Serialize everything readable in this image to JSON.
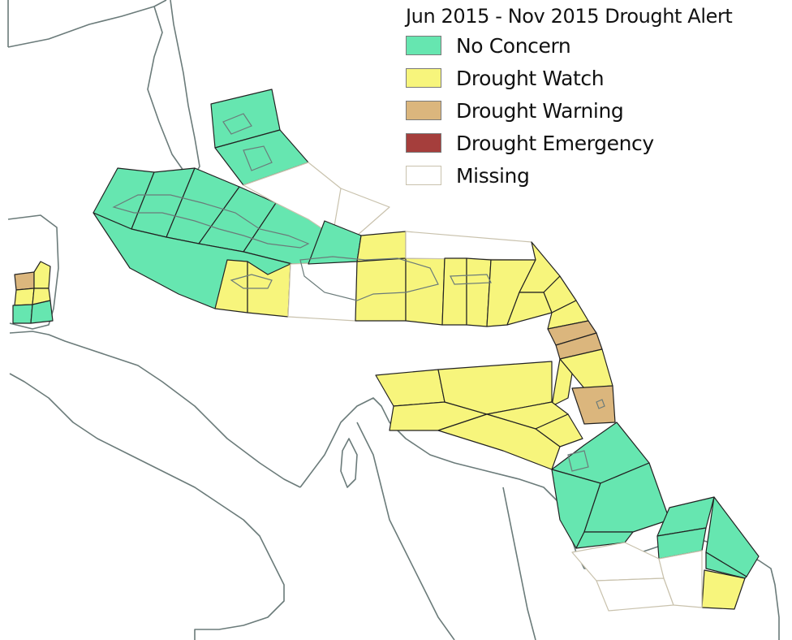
{
  "map": {
    "title": "Jun 2015 - Nov 2015 Drought Alert",
    "legend": [
      {
        "key": "no_concern",
        "label": "No Concern",
        "color": "#66e6b0"
      },
      {
        "key": "watch",
        "label": "Drought Watch",
        "color": "#f7f57c"
      },
      {
        "key": "warning",
        "label": "Drought Warning",
        "color": "#dbb67d"
      },
      {
        "key": "emergency",
        "label": "Drought Emergency",
        "color": "#a53e3c"
      },
      {
        "key": "missing",
        "label": "Missing",
        "color": "#ffffff"
      }
    ],
    "outline_colors": {
      "coast": "#6b7b7a",
      "region_border": "#222222",
      "missing_border": "#c9c2ad"
    }
  }
}
